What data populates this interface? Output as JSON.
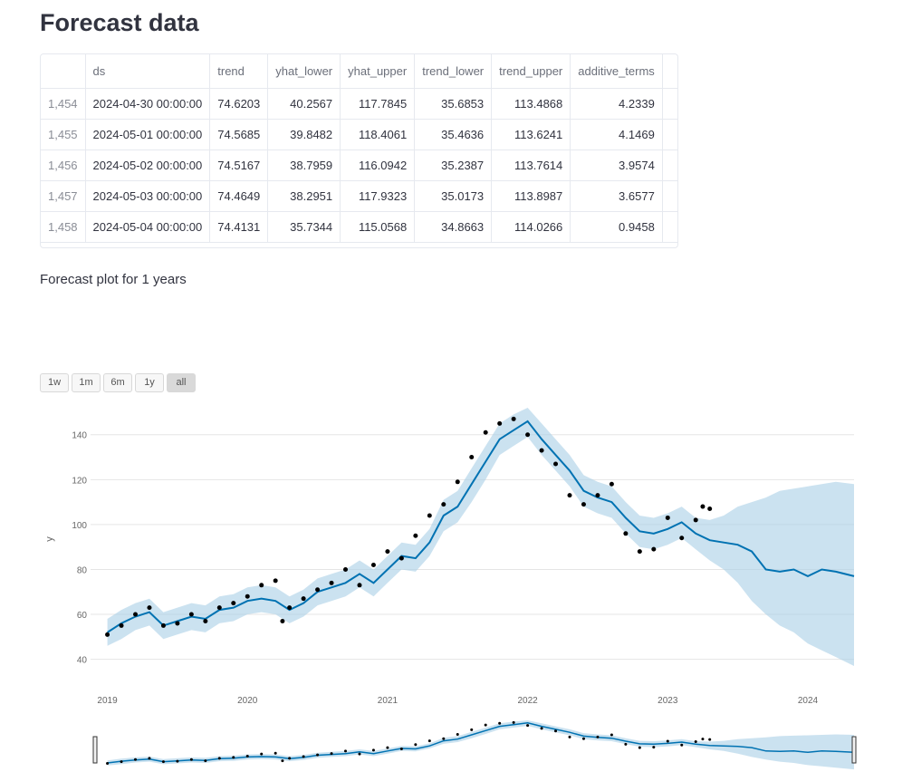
{
  "page_title": "Forecast data",
  "table": {
    "columns": [
      "ds",
      "trend",
      "yhat_lower",
      "yhat_upper",
      "trend_lower",
      "trend_upper",
      "additive_terms"
    ],
    "rows": [
      {
        "index": "1,454",
        "cells": [
          "2024-04-30 00:00:00",
          "74.6203",
          "40.2567",
          "117.7845",
          "35.6853",
          "113.4868",
          "4.2339"
        ]
      },
      {
        "index": "1,455",
        "cells": [
          "2024-05-01 00:00:00",
          "74.5685",
          "39.8482",
          "118.4061",
          "35.4636",
          "113.6241",
          "4.1469"
        ]
      },
      {
        "index": "1,456",
        "cells": [
          "2024-05-02 00:00:00",
          "74.5167",
          "38.7959",
          "116.0942",
          "35.2387",
          "113.7614",
          "3.9574"
        ]
      },
      {
        "index": "1,457",
        "cells": [
          "2024-05-03 00:00:00",
          "74.4649",
          "38.2951",
          "117.9323",
          "35.0173",
          "113.8987",
          "3.6577"
        ]
      },
      {
        "index": "1,458",
        "cells": [
          "2024-05-04 00:00:00",
          "74.4131",
          "35.7344",
          "115.0568",
          "34.8663",
          "114.0266",
          "0.9458"
        ]
      }
    ]
  },
  "caption": "Forecast plot for 1 years",
  "range_selector": {
    "buttons": [
      "1w",
      "1m",
      "6m",
      "1y",
      "all"
    ],
    "active": "all"
  },
  "chart_data": {
    "type": "line",
    "ylabel": "y",
    "xlabel": "",
    "xlim": [
      2018.88,
      2024.33
    ],
    "ylim": [
      35,
      152
    ],
    "x_ticks": [
      2019,
      2020,
      2021,
      2022,
      2023,
      2024
    ],
    "x_tick_labels": [
      "2019",
      "2020",
      "2021",
      "2022",
      "2023",
      "2024"
    ],
    "y_ticks": [
      40,
      60,
      80,
      100,
      120,
      140
    ],
    "y_tick_labels": [
      "40",
      "60",
      "80",
      "100",
      "120",
      "140"
    ],
    "grid": true,
    "colors": {
      "forecast": "#0072b2",
      "band": "#a9cfe6",
      "actual": "#000000"
    },
    "forecast_curve": {
      "x": [
        2019.0,
        2019.1,
        2019.2,
        2019.3,
        2019.4,
        2019.5,
        2019.6,
        2019.7,
        2019.8,
        2019.9,
        2020.0,
        2020.1,
        2020.2,
        2020.3,
        2020.4,
        2020.5,
        2020.6,
        2020.7,
        2020.8,
        2020.9,
        2021.0,
        2021.1,
        2021.2,
        2021.3,
        2021.4,
        2021.5,
        2021.6,
        2021.7,
        2021.8,
        2021.9,
        2022.0,
        2022.1,
        2022.2,
        2022.3,
        2022.4,
        2022.5,
        2022.6,
        2022.7,
        2022.8,
        2022.9,
        2023.0,
        2023.1,
        2023.2,
        2023.3,
        2023.4,
        2023.5,
        2023.6,
        2023.7,
        2023.8,
        2023.9,
        2024.0,
        2024.1,
        2024.2,
        2024.33
      ],
      "y": [
        52,
        56,
        59,
        61,
        55,
        57,
        59,
        58,
        62,
        63,
        66,
        67,
        66,
        62,
        65,
        70,
        72,
        74,
        78,
        74,
        80,
        86,
        85,
        92,
        104,
        108,
        118,
        128,
        138,
        142,
        146,
        138,
        131,
        124,
        115,
        112,
        110,
        103,
        97,
        96,
        98,
        101,
        96,
        93,
        92,
        91,
        88,
        80,
        79,
        80,
        77,
        80,
        79,
        77
      ],
      "lower": [
        46,
        49,
        53,
        55,
        49,
        51,
        53,
        52,
        56,
        57,
        60,
        61,
        60,
        56,
        59,
        64,
        66,
        68,
        72,
        68,
        74,
        80,
        79,
        86,
        97,
        101,
        110,
        120,
        131,
        135,
        139,
        131,
        124,
        117,
        108,
        105,
        103,
        96,
        90,
        89,
        91,
        94,
        89,
        84,
        80,
        74,
        66,
        60,
        55,
        52,
        47,
        44,
        41,
        37
      ],
      "upper": [
        58,
        62,
        65,
        67,
        61,
        63,
        65,
        64,
        68,
        69,
        72,
        73,
        72,
        68,
        71,
        76,
        78,
        80,
        84,
        80,
        86,
        92,
        91,
        98,
        111,
        115,
        125,
        135,
        145,
        149,
        152,
        145,
        138,
        131,
        122,
        119,
        117,
        110,
        104,
        103,
        105,
        108,
        103,
        102,
        104,
        108,
        110,
        112,
        115,
        116,
        117,
        118,
        119,
        118
      ]
    },
    "actual_data": {
      "x": [
        2019.0,
        2019.1,
        2019.2,
        2019.3,
        2019.4,
        2019.5,
        2019.6,
        2019.7,
        2019.8,
        2019.9,
        2020.0,
        2020.1,
        2020.2,
        2020.25,
        2020.3,
        2020.4,
        2020.5,
        2020.6,
        2020.7,
        2020.8,
        2020.9,
        2021.0,
        2021.1,
        2021.2,
        2021.3,
        2021.4,
        2021.5,
        2021.6,
        2021.7,
        2021.8,
        2021.9,
        2022.0,
        2022.1,
        2022.2,
        2022.3,
        2022.4,
        2022.5,
        2022.6,
        2022.7,
        2022.8,
        2022.9,
        2023.0,
        2023.1,
        2023.2,
        2023.25,
        2023.3
      ],
      "y": [
        51,
        55,
        60,
        63,
        55,
        56,
        60,
        57,
        63,
        65,
        68,
        73,
        75,
        57,
        63,
        67,
        71,
        74,
        80,
        73,
        82,
        88,
        85,
        95,
        104,
        109,
        119,
        130,
        141,
        145,
        147,
        140,
        133,
        127,
        113,
        109,
        113,
        118,
        96,
        88,
        89,
        103,
        94,
        102,
        108,
        107
      ]
    }
  }
}
